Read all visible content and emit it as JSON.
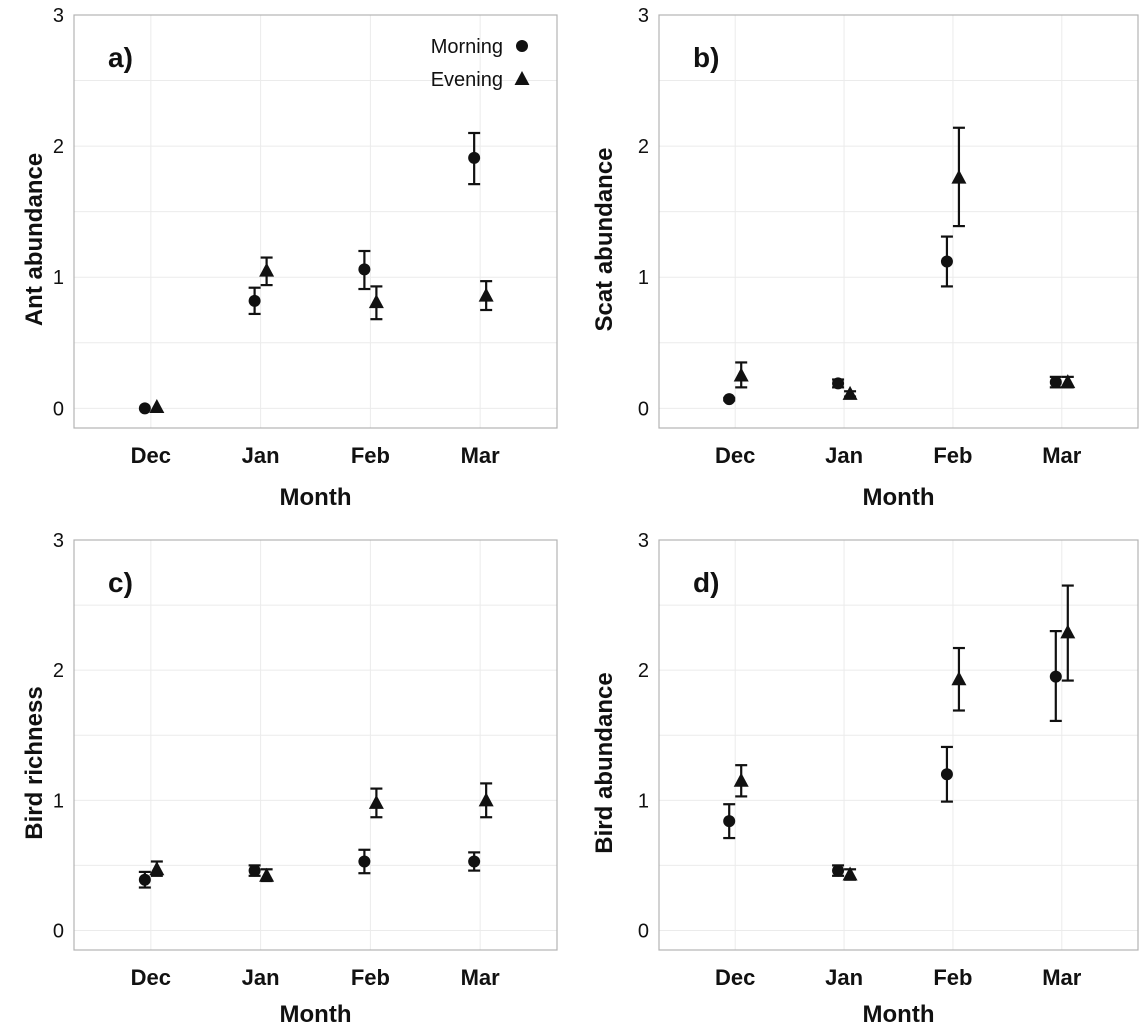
{
  "colors": {
    "marker": "#111111",
    "frame": "#b3b3b3",
    "grid": "#ebebeb"
  },
  "legend": {
    "items": [
      {
        "label": "Morning",
        "shape": "circle"
      },
      {
        "label": "Evening",
        "shape": "triangle"
      }
    ]
  },
  "chart_data": [
    {
      "type": "scatter",
      "panel_label": "a)",
      "xlabel": "Month",
      "ylabel": "Ant abundance",
      "categories": [
        "Dec",
        "Jan",
        "Feb",
        "Mar"
      ],
      "ylim": [
        -0.15,
        3
      ],
      "yticks": [
        "0",
        "1",
        "2",
        "3"
      ],
      "grid": true,
      "series": [
        {
          "name": "Morning",
          "shape": "circle",
          "values": [
            0.0,
            0.82,
            1.06,
            1.91
          ],
          "lower": [
            0.0,
            0.72,
            0.91,
            1.71
          ],
          "upper": [
            0.0,
            0.92,
            1.2,
            2.1
          ]
        },
        {
          "name": "Evening",
          "shape": "triangle",
          "values": [
            0.01,
            1.05,
            0.81,
            0.86
          ],
          "lower": [
            0.01,
            0.94,
            0.68,
            0.75
          ],
          "upper": [
            0.01,
            1.15,
            0.93,
            0.97
          ]
        }
      ]
    },
    {
      "type": "scatter",
      "panel_label": "b)",
      "xlabel": "Month",
      "ylabel": "Scat abundance",
      "categories": [
        "Dec",
        "Jan",
        "Feb",
        "Mar"
      ],
      "ylim": [
        -0.15,
        3
      ],
      "yticks": [
        "0",
        "1",
        "2",
        "3"
      ],
      "grid": true,
      "series": [
        {
          "name": "Morning",
          "shape": "circle",
          "values": [
            0.07,
            0.19,
            1.12,
            0.2
          ],
          "lower": [
            0.06,
            0.16,
            0.93,
            0.16
          ],
          "upper": [
            0.08,
            0.22,
            1.31,
            0.24
          ]
        },
        {
          "name": "Evening",
          "shape": "triangle",
          "values": [
            0.25,
            0.11,
            1.76,
            0.2
          ],
          "lower": [
            0.16,
            0.09,
            1.39,
            0.16
          ],
          "upper": [
            0.35,
            0.13,
            2.14,
            0.24
          ]
        }
      ]
    },
    {
      "type": "scatter",
      "panel_label": "c)",
      "xlabel": "Month",
      "ylabel": "Bird richness",
      "categories": [
        "Dec",
        "Jan",
        "Feb",
        "Mar"
      ],
      "ylim": [
        -0.15,
        3
      ],
      "yticks": [
        "0",
        "1",
        "2",
        "3"
      ],
      "grid": true,
      "series": [
        {
          "name": "Morning",
          "shape": "circle",
          "values": [
            0.39,
            0.46,
            0.53,
            0.53
          ],
          "lower": [
            0.33,
            0.42,
            0.44,
            0.46
          ],
          "upper": [
            0.45,
            0.5,
            0.62,
            0.6
          ]
        },
        {
          "name": "Evening",
          "shape": "triangle",
          "values": [
            0.47,
            0.42,
            0.98,
            1.0
          ],
          "lower": [
            0.42,
            0.38,
            0.87,
            0.87
          ],
          "upper": [
            0.53,
            0.47,
            1.09,
            1.13
          ]
        }
      ]
    },
    {
      "type": "scatter",
      "panel_label": "d)",
      "xlabel": "Month",
      "ylabel": "Bird abundance",
      "categories": [
        "Dec",
        "Jan",
        "Feb",
        "Mar"
      ],
      "ylim": [
        -0.15,
        3
      ],
      "yticks": [
        "0",
        "1",
        "2",
        "3"
      ],
      "grid": true,
      "series": [
        {
          "name": "Morning",
          "shape": "circle",
          "values": [
            0.84,
            0.46,
            1.2,
            1.95
          ],
          "lower": [
            0.71,
            0.42,
            0.99,
            1.61
          ],
          "upper": [
            0.97,
            0.5,
            1.41,
            2.3
          ]
        },
        {
          "name": "Evening",
          "shape": "triangle",
          "values": [
            1.15,
            0.43,
            1.93,
            2.29
          ],
          "lower": [
            1.03,
            0.39,
            1.69,
            1.92
          ],
          "upper": [
            1.27,
            0.47,
            2.17,
            2.65
          ]
        }
      ]
    }
  ]
}
